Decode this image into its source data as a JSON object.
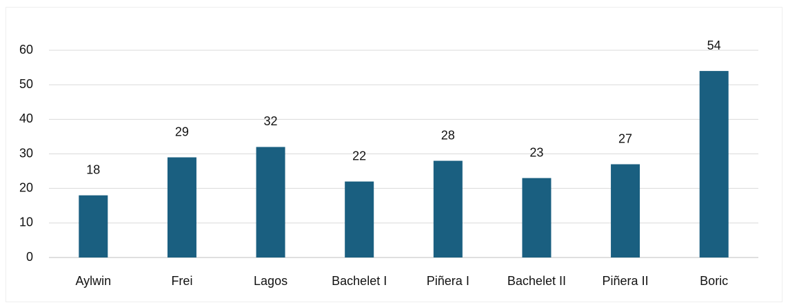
{
  "chart_data": {
    "type": "bar",
    "categories": [
      "Aylwin",
      "Frei",
      "Lagos",
      "Bachelet I",
      "Piñera I",
      "Bachelet II",
      "Piñera II",
      "Boric"
    ],
    "values": [
      18,
      29,
      32,
      22,
      28,
      23,
      27,
      54
    ],
    "color": "#1a5f80",
    "ylim": [
      0,
      60
    ],
    "yticks": [
      0,
      10,
      20,
      30,
      40,
      50,
      60
    ],
    "grid": true
  }
}
